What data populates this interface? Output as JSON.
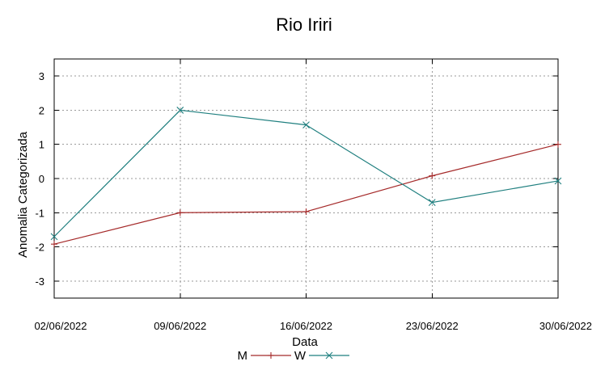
{
  "chart_data": {
    "type": "line",
    "title": "Rio Iriri",
    "xlabel": "Data",
    "ylabel": "Anomalia Categorizada",
    "x": [
      "02/06/2022",
      "09/06/2022",
      "16/06/2022",
      "23/06/2022",
      "30/06/2022"
    ],
    "y_ticks": [
      "3",
      "2",
      "1",
      "0",
      "-1",
      "-2",
      "-3"
    ],
    "y_tick_values": [
      3,
      2,
      1,
      0,
      -1,
      -2,
      -3
    ],
    "ylim": [
      -3.5,
      3.5
    ],
    "grid": true,
    "legend_position": "bottom-center",
    "series": [
      {
        "name": "M",
        "marker": "plus",
        "color": "#a52a2a",
        "values": [
          -1.92,
          -1.0,
          -0.97,
          0.08,
          1.0
        ]
      },
      {
        "name": "W",
        "marker": "cross",
        "color": "#1f7f7f",
        "values": [
          -1.7,
          2.0,
          1.57,
          -0.7,
          -0.07
        ]
      }
    ]
  }
}
